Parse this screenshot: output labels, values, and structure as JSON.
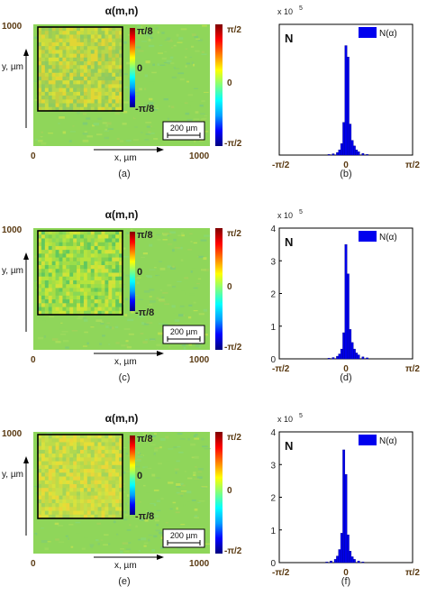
{
  "colors": {
    "map_background": "#8fd65a",
    "blue_bar": "#0000ee",
    "axis_label_brown": "#5a3a12",
    "inset_box": "#000000"
  },
  "colorbar_gradient": [
    "#00007f",
    "#0000ff",
    "#00a0ff",
    "#00ffff",
    "#7fff7f",
    "#ffff00",
    "#ff8000",
    "#ff0000",
    "#7f0000"
  ],
  "rows": [
    {
      "map_title": "α(m,n)",
      "map_caption": "(a)",
      "hist_caption": "(b)",
      "y_axis_label": "y, µm",
      "x_axis_label": "x, µm",
      "x_tick_0": "0",
      "x_tick_1000": "1000",
      "y_tick_1000": "1000",
      "scale_bar_label": "200 µm",
      "inset_ticks": [
        "π/8",
        "0",
        "-π/8"
      ],
      "colorbar_ticks": [
        "π/2",
        "0",
        "-π/2"
      ],
      "hist_N_label": "N",
      "hist_legend": "N(α)",
      "hist_multiplier": "x 10",
      "hist_multiplier_exp": "5",
      "hist_y_ticks": [],
      "hist_x_ticks": [
        "-π/2",
        "0",
        "π/2"
      ]
    },
    {
      "map_title": "α(m,n)",
      "map_caption": "(c)",
      "hist_caption": "(d)",
      "y_axis_label": "y, µm",
      "x_axis_label": "x, µm",
      "x_tick_0": "0",
      "x_tick_1000": "1000",
      "y_tick_1000": "1000",
      "scale_bar_label": "200 µm",
      "inset_ticks": [
        "π/8",
        "0",
        "-π/8"
      ],
      "colorbar_ticks": [
        "π/2",
        "0",
        "-π/2"
      ],
      "hist_N_label": "N",
      "hist_legend": "N(α)",
      "hist_multiplier": "x 10",
      "hist_multiplier_exp": "5",
      "hist_y_ticks": [
        "4",
        "3",
        "2",
        "1",
        "0"
      ],
      "hist_x_ticks": [
        "-π/2",
        "0",
        "π/2"
      ]
    },
    {
      "map_title": "α(m,n)",
      "map_caption": "(e)",
      "hist_caption": "(f)",
      "y_axis_label": "y, µm",
      "x_axis_label": "x, µm",
      "x_tick_0": "0",
      "x_tick_1000": "1000",
      "y_tick_1000": "1000",
      "scale_bar_label": "200 µm",
      "inset_ticks": [
        "π/8",
        "0",
        "-π/8"
      ],
      "colorbar_ticks": [
        "π/2",
        "0",
        "-π/2"
      ],
      "hist_N_label": "N",
      "hist_legend": "N(α)",
      "hist_multiplier": "x 10",
      "hist_multiplier_exp": "5",
      "hist_y_ticks": [
        "4",
        "3",
        "2",
        "1",
        "0"
      ],
      "hist_x_ticks": [
        "-π/2",
        "0",
        "π/2"
      ]
    }
  ],
  "chart_data": [
    {
      "type": "heatmap",
      "title": "α(m,n)",
      "xlabel": "x, µm",
      "ylabel": "y, µm",
      "xlim": [
        0,
        1000
      ],
      "ylim": [
        0,
        1000
      ],
      "colorbar_range": [
        "-π/2",
        "π/2"
      ],
      "inset_range": [
        "-π/8",
        "π/8"
      ]
    },
    {
      "type": "bar",
      "legend": "N(α)",
      "xlabel": "",
      "ylabel": "N",
      "x_unit": "rad",
      "xlim": [
        -1.5708,
        1.5708
      ],
      "ylim": [
        0,
        4
      ],
      "y_multiplier": "x 10^5",
      "x": [
        -0.4,
        -0.3,
        -0.2,
        -0.15,
        -0.1,
        -0.05,
        0.0,
        0.05,
        0.1,
        0.15,
        0.2,
        0.25,
        0.3,
        0.4,
        0.5
      ],
      "values": [
        0.02,
        0.04,
        0.08,
        0.16,
        0.35,
        1.0,
        3.35,
        3.0,
        0.95,
        0.45,
        0.28,
        0.16,
        0.1,
        0.05,
        0.02
      ]
    },
    {
      "type": "heatmap",
      "title": "α(m,n)",
      "xlabel": "x, µm",
      "ylabel": "y, µm",
      "xlim": [
        0,
        1000
      ],
      "ylim": [
        0,
        1000
      ],
      "colorbar_range": [
        "-π/2",
        "π/2"
      ],
      "inset_range": [
        "-π/8",
        "π/8"
      ]
    },
    {
      "type": "bar",
      "legend": "N(α)",
      "xlabel": "",
      "ylabel": "N",
      "x_unit": "rad",
      "xlim": [
        -1.5708,
        1.5708
      ],
      "ylim": [
        0,
        4
      ],
      "y_multiplier": "x 10^5",
      "x": [
        -0.4,
        -0.3,
        -0.2,
        -0.15,
        -0.1,
        -0.05,
        0.0,
        0.05,
        0.1,
        0.15,
        0.2,
        0.25,
        0.3,
        0.4,
        0.5
      ],
      "values": [
        0.02,
        0.04,
        0.08,
        0.15,
        0.3,
        0.8,
        3.5,
        2.6,
        0.9,
        0.5,
        0.3,
        0.18,
        0.12,
        0.06,
        0.03
      ]
    },
    {
      "type": "heatmap",
      "title": "α(m,n)",
      "xlabel": "x, µm",
      "ylabel": "y, µm",
      "xlim": [
        0,
        1000
      ],
      "ylim": [
        0,
        1000
      ],
      "colorbar_range": [
        "-π/2",
        "π/2"
      ],
      "inset_range": [
        "-π/8",
        "π/8"
      ]
    },
    {
      "type": "bar",
      "legend": "N(α)",
      "xlabel": "",
      "ylabel": "N",
      "x_unit": "rad",
      "xlim": [
        -1.5708,
        1.5708
      ],
      "ylim": [
        0,
        4
      ],
      "y_multiplier": "x 10^5",
      "x": [
        -0.45,
        -0.35,
        -0.25,
        -0.2,
        -0.15,
        -0.1,
        -0.05,
        0.0,
        0.05,
        0.1,
        0.15,
        0.2,
        0.3,
        0.4
      ],
      "values": [
        0.02,
        0.05,
        0.1,
        0.2,
        0.4,
        0.9,
        3.45,
        2.7,
        0.85,
        0.35,
        0.18,
        0.1,
        0.05,
        0.02
      ]
    }
  ]
}
